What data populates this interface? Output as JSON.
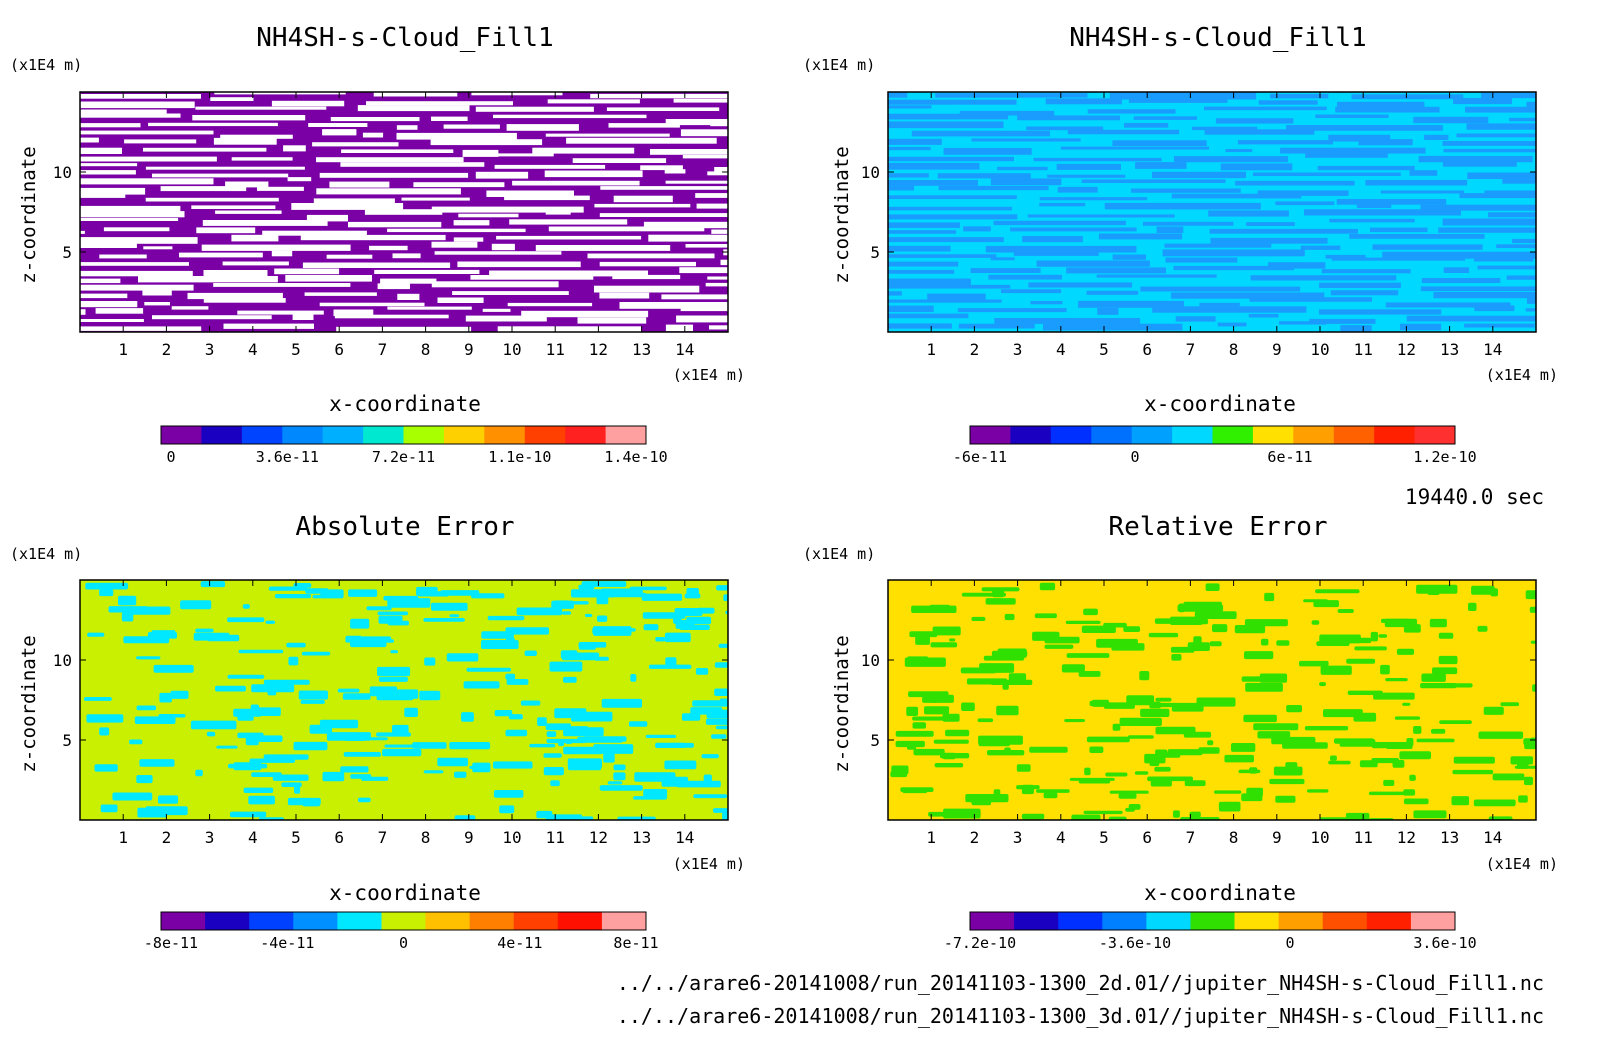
{
  "chart_data": [
    {
      "type": "heatmap",
      "title": "NH4SH-s-Cloud_Fill1",
      "xlabel": "x-coordinate",
      "ylabel": "z-coordinate",
      "x_unit": "(x1E4 m)",
      "y_unit": "(x1E4 m)",
      "xticks": [
        "1",
        "2",
        "3",
        "4",
        "5",
        "6",
        "7",
        "8",
        "9",
        "10",
        "11",
        "12",
        "13",
        "14"
      ],
      "yticks": [
        "5",
        "10"
      ],
      "xlim": [
        0,
        15
      ],
      "ylim": [
        0,
        15
      ],
      "background_color": "#7a00a6",
      "pattern_color": "#ffffff",
      "pattern": "streaks",
      "colorbar": {
        "colors": [
          "#7a00a6",
          "#1a00c0",
          "#0044ff",
          "#0088ff",
          "#00b0ff",
          "#00e8d0",
          "#a8ff00",
          "#ffd000",
          "#ff9000",
          "#ff4000",
          "#ff2020",
          "#ffa0a0"
        ],
        "labels": [
          "0",
          "3.6e-11",
          "7.2e-11",
          "1.1e-10",
          "1.4e-10"
        ]
      }
    },
    {
      "type": "heatmap",
      "title": "NH4SH-s-Cloud_Fill1",
      "xlabel": "x-coordinate",
      "ylabel": "z-coordinate",
      "x_unit": "(x1E4 m)",
      "y_unit": "(x1E4 m)",
      "xticks": [
        "1",
        "2",
        "3",
        "4",
        "5",
        "6",
        "7",
        "8",
        "9",
        "10",
        "11",
        "12",
        "13",
        "14"
      ],
      "yticks": [
        "5",
        "10"
      ],
      "xlim": [
        0,
        15
      ],
      "ylim": [
        0,
        15
      ],
      "background_color": "#00d8ff",
      "pattern_color": "#1a9cff",
      "pattern": "streaks",
      "colorbar": {
        "colors": [
          "#7a00a6",
          "#1a00c0",
          "#0030ff",
          "#0070ff",
          "#00a0ff",
          "#00d8ff",
          "#30f000",
          "#ffe000",
          "#ffa000",
          "#ff6000",
          "#ff2000",
          "#ff3030"
        ],
        "labels": [
          "-6e-11",
          "0",
          "6e-11",
          "1.2e-10"
        ]
      }
    },
    {
      "type": "heatmap",
      "title": "Absolute Error",
      "xlabel": "x-coordinate",
      "ylabel": "z-coordinate",
      "x_unit": "(x1E4 m)",
      "y_unit": "(x1E4 m)",
      "xticks": [
        "1",
        "2",
        "3",
        "4",
        "5",
        "6",
        "7",
        "8",
        "9",
        "10",
        "11",
        "12",
        "13",
        "14"
      ],
      "yticks": [
        "5",
        "10"
      ],
      "xlim": [
        0,
        15
      ],
      "ylim": [
        0,
        15
      ],
      "background_color": "#c8f000",
      "pattern_color": "#00e8ff",
      "pattern": "patches",
      "colorbar": {
        "colors": [
          "#7a00a6",
          "#1a00c0",
          "#0040ff",
          "#0090ff",
          "#00e8ff",
          "#c8f000",
          "#ffc000",
          "#ff8000",
          "#ff4000",
          "#ff1000",
          "#ffa0a0"
        ],
        "labels": [
          "-8e-11",
          "-4e-11",
          "0",
          "4e-11",
          "8e-11"
        ]
      }
    },
    {
      "type": "heatmap",
      "title": "Relative Error",
      "xlabel": "x-coordinate",
      "ylabel": "z-coordinate",
      "x_unit": "(x1E4 m)",
      "y_unit": "(x1E4 m)",
      "xticks": [
        "1",
        "2",
        "3",
        "4",
        "5",
        "6",
        "7",
        "8",
        "9",
        "10",
        "11",
        "12",
        "13",
        "14"
      ],
      "yticks": [
        "5",
        "10"
      ],
      "xlim": [
        0,
        15
      ],
      "ylim": [
        0,
        15
      ],
      "background_color": "#ffe000",
      "pattern_color": "#30e000",
      "pattern": "patches",
      "colorbar": {
        "colors": [
          "#7a00a6",
          "#1a00c0",
          "#0030ff",
          "#0080ff",
          "#00d8ff",
          "#30e000",
          "#ffe000",
          "#ffa000",
          "#ff5000",
          "#ff2000",
          "#ffa0a0"
        ],
        "labels": [
          "-7.2e-10",
          "-3.6e-10",
          "0",
          "3.6e-10"
        ]
      }
    }
  ],
  "time_label": "19440.0 sec",
  "footer": {
    "line1": "../../arare6-20141008/run_20141103-1300_2d.01//jupiter_NH4SH-s-Cloud_Fill1.nc",
    "line2": "../../arare6-20141008/run_20141103-1300_3d.01//jupiter_NH4SH-s-Cloud_Fill1.nc"
  }
}
